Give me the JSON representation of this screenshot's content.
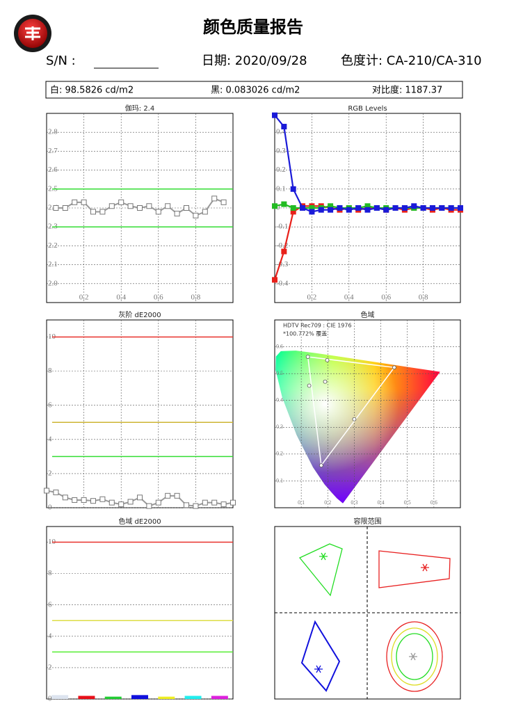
{
  "header": {
    "title": "颜色质量报告",
    "serial_label": "S/N :",
    "date": "日期: 2020/09/28",
    "meter": "色度计: CA-210/CA-310"
  },
  "summary": {
    "white": "白: 98.5826 cd/m2",
    "black": "黑: 0.083026 cd/m2",
    "contrast": "对比度: 1187.37"
  },
  "chart_data": [
    {
      "type": "line",
      "title": "伽玛: 2.4",
      "x": [
        0.05,
        0.1,
        0.15,
        0.2,
        0.25,
        0.3,
        0.35,
        0.4,
        0.45,
        0.5,
        0.55,
        0.6,
        0.65,
        0.7,
        0.75,
        0.8,
        0.85,
        0.9,
        0.95
      ],
      "series": [
        {
          "color": "#999999",
          "marker": "hollow",
          "values": [
            2.4,
            2.4,
            2.43,
            2.43,
            2.38,
            2.38,
            2.41,
            2.43,
            2.41,
            2.4,
            2.41,
            2.38,
            2.41,
            2.37,
            2.4,
            2.36,
            2.38,
            2.45,
            2.43
          ]
        }
      ],
      "reference_lines": [
        {
          "value": 2.5,
          "color": "#33dd33"
        },
        {
          "value": 2.3,
          "color": "#33dd33"
        }
      ],
      "xlim": [
        0,
        1
      ],
      "ylim": [
        1.9,
        2.9
      ],
      "xticks": [
        0.2,
        0.4,
        0.6,
        0.8
      ],
      "yticks": [
        {
          "value": 2,
          "label": "2.0"
        },
        2.1,
        2.2,
        2.3,
        2.4,
        2.5,
        2.6,
        2.7,
        2.8
      ],
      "grid": true
    },
    {
      "type": "line",
      "title": "RGB Levels",
      "x": [
        0,
        0.05,
        0.1,
        0.15,
        0.2,
        0.25,
        0.3,
        0.35,
        0.4,
        0.45,
        0.5,
        0.55,
        0.6,
        0.65,
        0.7,
        0.75,
        0.8,
        0.85,
        0.9,
        0.95,
        1
      ],
      "series": [
        {
          "color": "#e8201a",
          "marker": "filled",
          "values": [
            -0.38,
            -0.23,
            -0.02,
            0.01,
            0.01,
            0.01,
            0.0,
            -0.01,
            0.0,
            -0.01,
            0.0,
            0.0,
            -0.01,
            0.0,
            -0.01,
            0.0,
            0.0,
            -0.01,
            0.0,
            -0.01,
            -0.01
          ]
        },
        {
          "color": "#22bb22",
          "marker": "filled",
          "values": [
            0.01,
            0.02,
            0.0,
            0.0,
            0.0,
            0.0,
            0.01,
            0.0,
            0.0,
            0.0,
            0.01,
            0.0,
            0.0,
            0.0,
            0.0,
            0.0,
            0.0,
            0.0,
            0.0,
            0.0,
            0.0
          ]
        },
        {
          "color": "#1a1ad8",
          "marker": "filled",
          "values": [
            0.49,
            0.43,
            0.1,
            0.0,
            -0.02,
            -0.01,
            -0.01,
            0.0,
            -0.01,
            0.0,
            -0.01,
            0.0,
            -0.01,
            0.0,
            0.0,
            0.01,
            0.0,
            0.0,
            0.0,
            0.0,
            0.0
          ]
        }
      ],
      "xlim": [
        0,
        1
      ],
      "ylim": [
        -0.5,
        0.5
      ],
      "xticks": [
        0.2,
        0.4,
        0.6,
        0.8
      ],
      "yticks": [
        -0.4,
        -0.3,
        -0.2,
        -0.1,
        0,
        0.1,
        0.2,
        0.3,
        0.4
      ],
      "grid": true
    },
    {
      "type": "line",
      "title": "灰阶 dE2000",
      "x": [
        0,
        0.05,
        0.1,
        0.15,
        0.2,
        0.25,
        0.3,
        0.35,
        0.4,
        0.45,
        0.5,
        0.55,
        0.6,
        0.65,
        0.7,
        0.75,
        0.8,
        0.85,
        0.9,
        0.95,
        1
      ],
      "series": [
        {
          "color": "#999999",
          "marker": "hollow",
          "values": [
            1.0,
            0.9,
            0.6,
            0.45,
            0.45,
            0.4,
            0.5,
            0.3,
            0.2,
            0.35,
            0.6,
            0.1,
            0.3,
            0.7,
            0.7,
            0.15,
            0.1,
            0.3,
            0.3,
            0.2,
            0.3
          ]
        }
      ],
      "reference_lines": [
        {
          "value": 10,
          "color": "#e8302a"
        },
        {
          "value": 5,
          "color": "#cdb433"
        },
        {
          "value": 3,
          "color": "#33dd33"
        }
      ],
      "xlim": [
        0,
        1
      ],
      "ylim": [
        0,
        11
      ],
      "yticks": [
        0,
        2,
        4,
        6,
        8,
        10
      ],
      "grid": true
    },
    {
      "type": "gamut",
      "title": "色域",
      "annotations": [
        "HDTV Rec709 : CIE 1976",
        "*100.772% 覆盖"
      ],
      "target": [
        [
          0.4507,
          0.5229
        ],
        [
          0.125,
          0.5625
        ],
        [
          0.1754,
          0.1579
        ]
      ],
      "points": [
        [
          0.4507,
          0.5229
        ],
        [
          0.125,
          0.5625
        ],
        [
          0.1754,
          0.1579
        ],
        [
          0.198,
          0.55
        ],
        [
          0.13,
          0.455
        ],
        [
          0.19,
          0.47
        ],
        [
          0.3,
          0.33
        ]
      ],
      "xlim": [
        0,
        0.7
      ],
      "ylim": [
        0,
        0.7
      ],
      "xticks": [
        0.1,
        0.2,
        0.3,
        0.4,
        0.5,
        0.6
      ],
      "yticks": [
        0.1,
        0.2,
        0.3,
        0.4,
        0.5,
        0.6
      ],
      "grid": true
    },
    {
      "type": "bar",
      "title": "色域 dE2000",
      "categories": [
        null,
        null,
        null,
        null,
        null,
        null,
        null
      ],
      "values": [
        0.25,
        0.2,
        0.15,
        0.25,
        0.15,
        0.2,
        0.2
      ],
      "colors": [
        "#dde4ef",
        "#e8101a",
        "#22cc33",
        "#1010dd",
        "#eeee22",
        "#22eeee",
        "#dd22dd"
      ],
      "reference_lines": [
        {
          "value": 10,
          "color": "#e8302a"
        },
        {
          "value": 5,
          "color": "#dddd44"
        },
        {
          "value": 3,
          "color": "#55ee33"
        }
      ],
      "ylim": [
        0,
        11
      ],
      "yticks": [
        0,
        2,
        4,
        6,
        8,
        10
      ],
      "grid": true
    },
    {
      "type": "tolerance",
      "title": "容限范围"
    }
  ]
}
